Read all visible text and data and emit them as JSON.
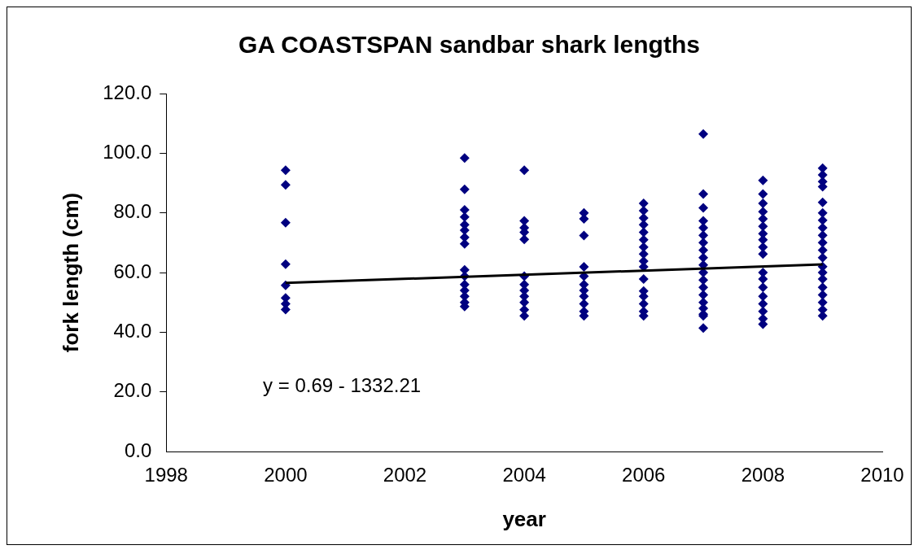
{
  "chart_data": {
    "type": "scatter",
    "title": "GA COASTSPAN sandbar shark lengths",
    "xlabel": "year",
    "ylabel": "fork length (cm)",
    "xlim": [
      1998,
      2010
    ],
    "xticks": [
      1998,
      2000,
      2002,
      2004,
      2006,
      2008,
      2010
    ],
    "ylim": [
      0,
      120
    ],
    "yticks": [
      {
        "value": 0,
        "label": "0.0"
      },
      {
        "value": 20,
        "label": "20.0"
      },
      {
        "value": 40,
        "label": "40.0"
      },
      {
        "value": 60,
        "label": "60.0"
      },
      {
        "value": 80,
        "label": "80.0"
      },
      {
        "value": 100,
        "label": "100.0"
      },
      {
        "value": 120,
        "label": "120.0"
      }
    ],
    "grid": false,
    "legend": false,
    "marker": "diamond",
    "annotations": [
      "y = 0.69 - 1332.21"
    ],
    "series": [
      {
        "type": "scatter",
        "color": "#000080",
        "x": [
          2000,
          2000,
          2000,
          2000,
          2000,
          2000,
          2000,
          2000,
          2003,
          2003,
          2003,
          2003,
          2003,
          2003,
          2003,
          2003,
          2003,
          2003,
          2003,
          2003,
          2003,
          2003,
          2003,
          2004,
          2004,
          2004,
          2004,
          2004,
          2004,
          2004,
          2004,
          2004,
          2004,
          2004,
          2004,
          2005,
          2005,
          2005,
          2005,
          2005,
          2005,
          2005,
          2005,
          2005,
          2005,
          2005,
          2006,
          2006,
          2006,
          2006,
          2006,
          2006,
          2006,
          2006,
          2006,
          2006,
          2006,
          2006,
          2006,
          2006,
          2006,
          2006,
          2007,
          2007,
          2007,
          2007,
          2007,
          2007,
          2007,
          2007,
          2007,
          2007,
          2007,
          2007,
          2007,
          2007,
          2007,
          2007,
          2007,
          2007,
          2007,
          2008,
          2008,
          2008,
          2008,
          2008,
          2008,
          2008,
          2008,
          2008,
          2008,
          2008,
          2008,
          2008,
          2008,
          2008,
          2008,
          2008,
          2008,
          2009,
          2009,
          2009,
          2009,
          2009,
          2009,
          2009,
          2009,
          2009,
          2009,
          2009,
          2009,
          2009,
          2009,
          2009,
          2009,
          2009,
          2009,
          2009,
          2009
        ],
        "values": [
          94.3,
          89.4,
          76.7,
          62.8,
          55.7,
          51.5,
          49.5,
          47.6,
          98.4,
          87.9,
          81,
          78.6,
          76,
          74.2,
          71.8,
          69.6,
          60.9,
          58.8,
          56,
          54,
          52,
          50,
          48.6,
          94.3,
          77.3,
          75,
          73.5,
          71.1,
          58.8,
          56,
          54,
          52,
          50,
          47.5,
          45.5,
          80,
          78,
          72.4,
          61.9,
          58.8,
          56,
          54,
          52,
          49.5,
          47,
          45.5,
          83.2,
          80.7,
          78.3,
          76,
          73.5,
          71,
          68.5,
          66.2,
          63.8,
          61.9,
          57.8,
          53.8,
          52,
          49.5,
          47,
          45.5,
          106.4,
          86.3,
          81.7,
          77.3,
          75,
          72.5,
          70,
          67.5,
          65,
          62.5,
          60,
          57.5,
          55,
          52.5,
          50,
          48,
          46,
          45.5,
          41.4,
          90.9,
          86.3,
          83.2,
          80.4,
          78,
          75.5,
          73,
          71,
          68.5,
          66.2,
          60,
          57.8,
          55,
          52,
          49.5,
          47,
          44.5,
          42.7,
          95,
          92.7,
          90.5,
          88.8,
          83.5,
          80,
          77.5,
          75,
          72.5,
          70,
          67.5,
          65,
          62,
          60,
          57.8,
          55,
          52.5,
          50,
          47.5,
          45.5
        ]
      },
      {
        "type": "line",
        "color": "#000000",
        "marker": "none",
        "x": [
          2000,
          2009
        ],
        "values": [
          56.5,
          62.7
        ]
      }
    ]
  }
}
